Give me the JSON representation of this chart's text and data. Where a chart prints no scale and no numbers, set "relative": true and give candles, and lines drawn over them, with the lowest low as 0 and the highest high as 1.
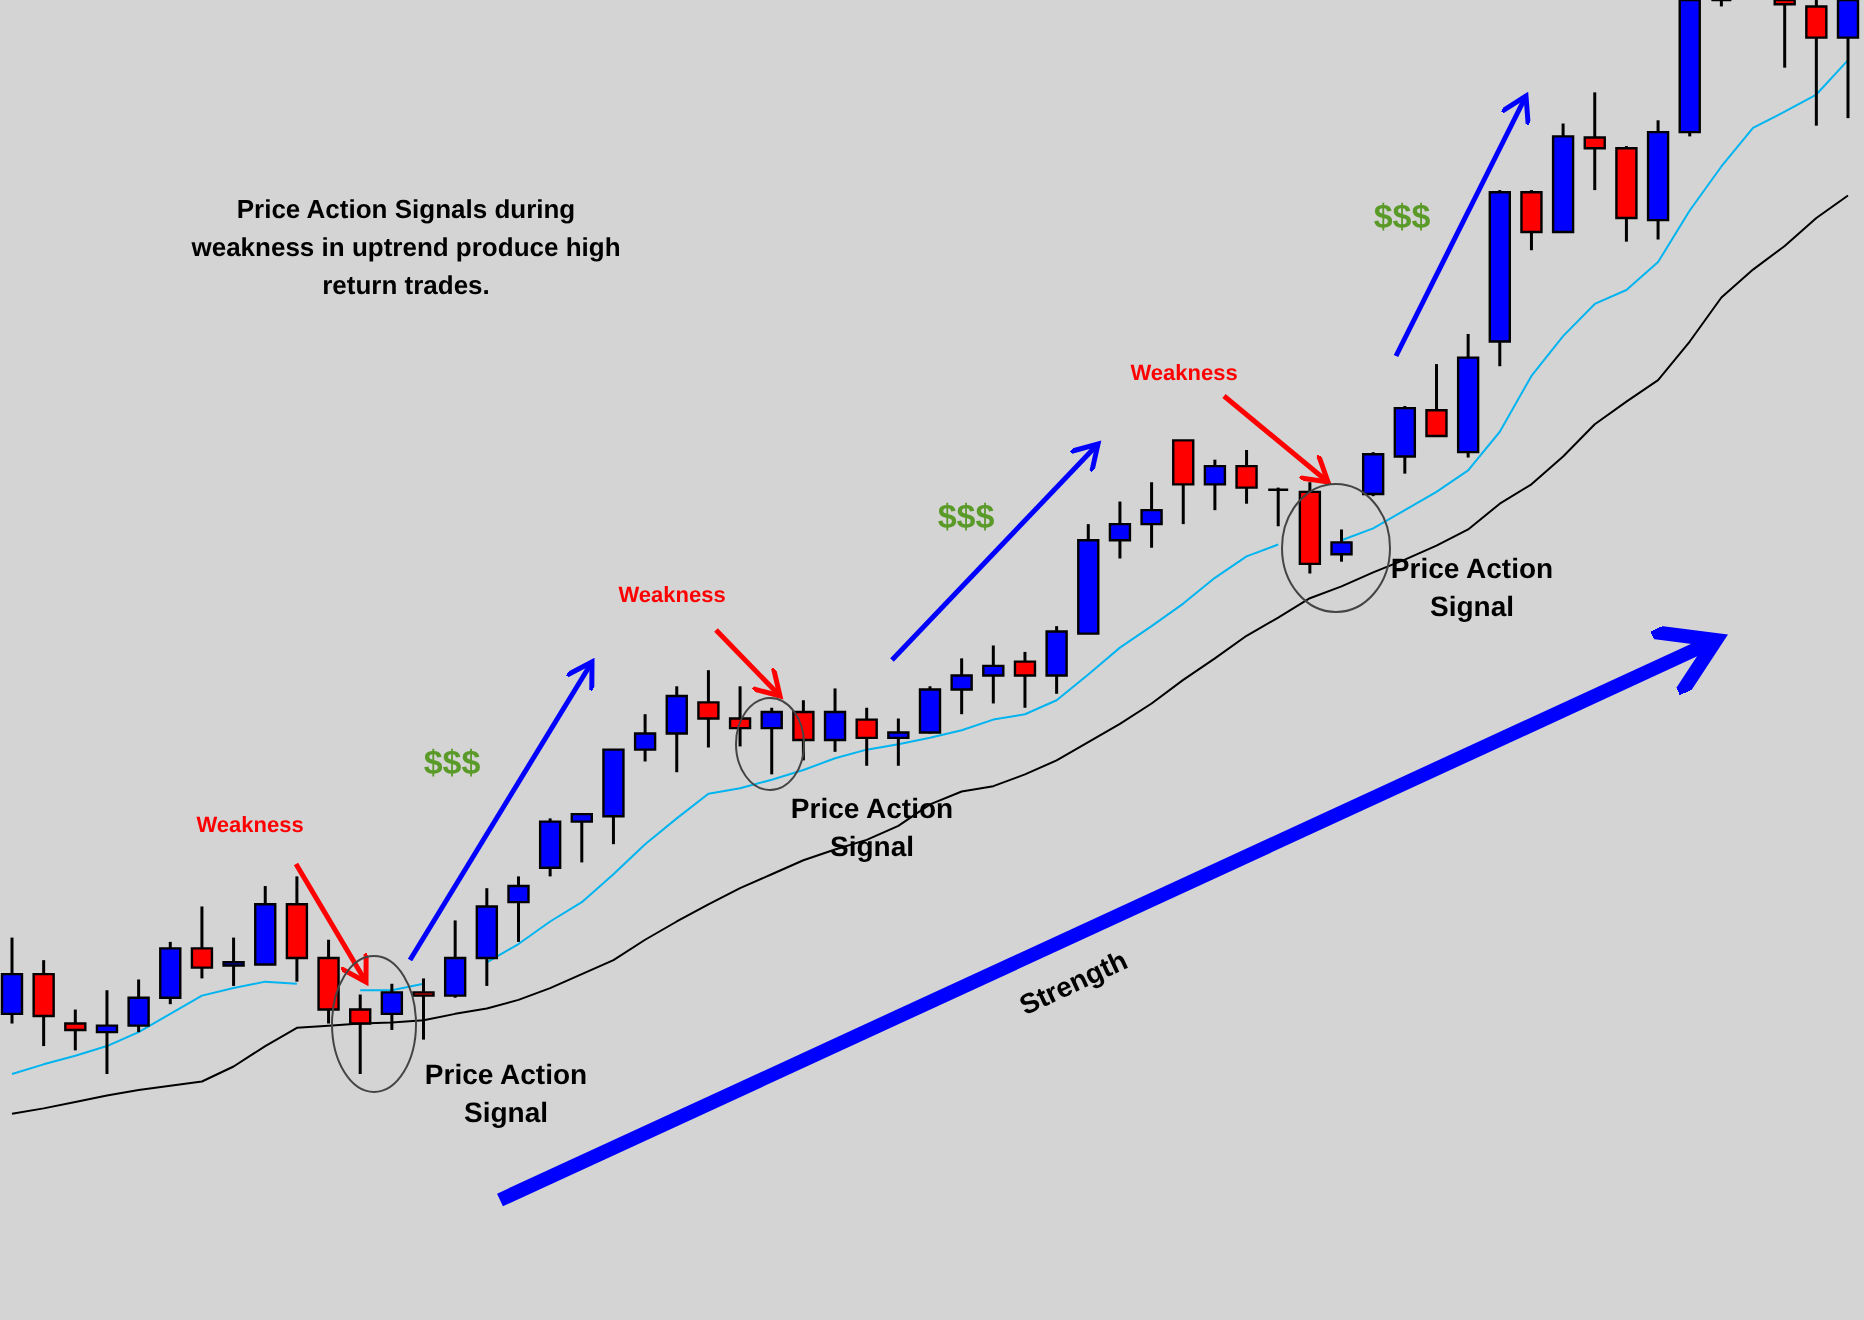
{
  "chart_data": {
    "type": "candlestick",
    "relative": true,
    "annotations": [
      "Price Action Signals during weakness in uptrend produce high return trades.",
      "Weakness",
      "Weakness",
      "Weakness",
      "$$$",
      "$$$",
      "$$$",
      "Price Action Signal",
      "Price Action Signal",
      "Price Action Signal",
      "Strength"
    ],
    "categories": [
      null,
      null,
      null,
      null,
      null,
      null,
      null,
      null,
      null,
      null,
      null,
      null,
      null,
      null,
      null,
      null,
      null,
      null,
      null,
      null,
      null,
      null,
      null,
      null,
      null,
      null,
      null,
      null,
      null,
      null,
      null,
      null,
      null,
      null,
      null,
      null,
      null,
      null,
      null,
      null,
      null,
      null,
      null,
      null,
      null,
      null,
      null,
      null,
      null,
      null,
      null,
      null,
      null,
      null,
      null,
      null,
      null,
      null,
      null
    ],
    "ohlc": [
      [
        0.056,
        0.127,
        0.047,
        0.093
      ],
      [
        0.093,
        0.106,
        0.026,
        0.054
      ],
      [
        0.047,
        0.06,
        0.022,
        0.041
      ],
      [
        0.039,
        0.078,
        0,
        0.045
      ],
      [
        0.045,
        0.088,
        0.039,
        0.071
      ],
      [
        0.071,
        0.123,
        0.065,
        0.117
      ],
      [
        0.117,
        0.156,
        0.089,
        0.099
      ],
      [
        0.101,
        0.127,
        0.082,
        0.104
      ],
      [
        0.102,
        0.175,
        0.102,
        0.158
      ],
      [
        0.158,
        0.184,
        0.086,
        0.108
      ],
      [
        0.108,
        0.125,
        0.047,
        0.06
      ],
      [
        0.06,
        0.074,
        0,
        0.047
      ],
      [
        0.056,
        0.084,
        0.041,
        0.076
      ],
      [
        0.076,
        0.089,
        0.032,
        0.073
      ],
      [
        0.073,
        0.143,
        0.071,
        0.108
      ],
      [
        0.108,
        0.173,
        0.082,
        0.156
      ],
      [
        0.16,
        0.184,
        0.123,
        0.175
      ],
      [
        0.192,
        0.238,
        0.184,
        0.235
      ],
      [
        0.235,
        0.242,
        0.197,
        0.242
      ],
      [
        0.24,
        0.302,
        0.214,
        0.302
      ],
      [
        0.302,
        0.335,
        0.291,
        0.317
      ],
      [
        0.317,
        0.361,
        0.281,
        0.352
      ],
      [
        0.346,
        0.376,
        0.304,
        0.331
      ],
      [
        0.331,
        0.361,
        0.305,
        0.322
      ],
      [
        0.322,
        0.341,
        0.279,
        0.337
      ],
      [
        0.337,
        0.348,
        0.292,
        0.311
      ],
      [
        0.311,
        0.359,
        0.3,
        0.337
      ],
      [
        0.33,
        0.341,
        0.287,
        0.313
      ],
      [
        0.313,
        0.331,
        0.287,
        0.318
      ],
      [
        0.318,
        0.361,
        0.317,
        0.358
      ],
      [
        0.358,
        0.387,
        0.335,
        0.371
      ],
      [
        0.371,
        0.399,
        0.345,
        0.38
      ],
      [
        0.384,
        0.393,
        0.341,
        0.371
      ],
      [
        0.371,
        0.417,
        0.354,
        0.412
      ],
      [
        0.41,
        0.512,
        0.41,
        0.497
      ],
      [
        0.497,
        0.533,
        0.48,
        0.512
      ],
      [
        0.512,
        0.551,
        0.49,
        0.525
      ],
      [
        0.59,
        0.59,
        0.512,
        0.549
      ],
      [
        0.549,
        0.572,
        0.525,
        0.566
      ],
      [
        0.566,
        0.581,
        0.531,
        0.546
      ],
      [
        0.544,
        0.546,
        0.51,
        0.544
      ],
      [
        0.542,
        0.551,
        0.466,
        0.475
      ],
      [
        0.484,
        0.507,
        0.477,
        0.495
      ],
      [
        0.54,
        0.579,
        0.538,
        0.577
      ],
      [
        0.575,
        0.622,
        0.559,
        0.62
      ],
      [
        0.618,
        0.661,
        0.594,
        0.594
      ],
      [
        0.579,
        0.689,
        0.574,
        0.667
      ],
      [
        0.682,
        0.823,
        0.659,
        0.821
      ],
      [
        0.821,
        0.823,
        0.767,
        0.784
      ],
      [
        0.784,
        0.885,
        0.784,
        0.873
      ],
      [
        0.872,
        0.914,
        0.823,
        0.862
      ],
      [
        0.862,
        0.864,
        0.775,
        0.797
      ],
      [
        0.795,
        0.888,
        0.777,
        0.877
      ],
      [
        0.877,
        1,
        0.873,
        1
      ],
      [
        1,
        1,
        0.994,
        1
      ],
      null,
      [
        1,
        1,
        0.937,
        0.996
      ],
      [
        0.994,
        1,
        0.883,
        0.965
      ],
      [
        0.965,
        1,
        0.89,
        1
      ]
    ],
    "colors": [
      "#0000ff",
      "#ff0000",
      "#ff0000",
      "#0000ff",
      "#0000ff",
      "#0000ff",
      "#ff0000",
      "#0000ff",
      "#0000ff",
      "#ff0000",
      "#ff0000",
      "#ff0000",
      "#0000ff",
      "#ff0000",
      "#0000ff",
      "#0000ff",
      "#0000ff",
      "#0000ff",
      "#0000ff",
      "#0000ff",
      "#0000ff",
      "#0000ff",
      "#ff0000",
      "#ff0000",
      "#0000ff",
      "#ff0000",
      "#0000ff",
      "#ff0000",
      "#0000ff",
      "#0000ff",
      "#0000ff",
      "#0000ff",
      "#ff0000",
      "#0000ff",
      "#0000ff",
      "#0000ff",
      "#0000ff",
      "#ff0000",
      "#0000ff",
      "#ff0000",
      "#000000",
      "#ff0000",
      "#0000ff",
      "#0000ff",
      "#0000ff",
      "#ff0000",
      "#0000ff",
      "#0000ff",
      "#ff0000",
      "#0000ff",
      "#ff0000",
      "#ff0000",
      "#0000ff",
      "#0000ff",
      "#000000",
      null,
      "#ff0000",
      "#ff0000",
      "#0000ff"
    ],
    "series": [
      {
        "type": "line",
        "color": "#00b4f0",
        "values": [
          0,
          0.009,
          0.017,
          0.026,
          0.039,
          0.056,
          0.073,
          0.08,
          0.086,
          0.084,
          null,
          0.078,
          0.078,
          0.084,
          null,
          0.104,
          0.121,
          0.142,
          0.16,
          0.186,
          0.214,
          0.238,
          0.261,
          0.266,
          0.274,
          0.283,
          0.294,
          0.302,
          0.307,
          0.313,
          0.32,
          0.33,
          0.335,
          0.348,
          0.372,
          0.397,
          0.417,
          0.438,
          0.462,
          0.482,
          0.493,
          null,
          0.497,
          0.508,
          0.525,
          0.542,
          0.562,
          0.598,
          0.65,
          0.687,
          0.717,
          0.73,
          0.756,
          0.804,
          0.845,
          0.881,
          0.896,
          0.912,
          0.944
        ]
      },
      {
        "type": "line",
        "color": "#000000",
        "values": [
          -0.037,
          -0.032,
          -0.026,
          -0.02,
          -0.015,
          -0.011,
          -0.007,
          0.007,
          0.026,
          0.043,
          0.045,
          0.047,
          0.048,
          0.05,
          0.056,
          0.061,
          0.069,
          0.08,
          0.093,
          0.106,
          0.125,
          0.142,
          0.158,
          0.173,
          0.186,
          0.199,
          0.209,
          0.218,
          0.231,
          0.251,
          0.263,
          0.268,
          0.279,
          0.292,
          0.309,
          0.326,
          0.345,
          0.367,
          0.387,
          0.408,
          0.425,
          0.443,
          0.454,
          0.467,
          0.479,
          0.492,
          0.507,
          0.531,
          0.549,
          0.575,
          0.605,
          0.626,
          0.646,
          0.682,
          0.723,
          0.749,
          0.771,
          0.797,
          0.818
        ]
      }
    ]
  }
}
